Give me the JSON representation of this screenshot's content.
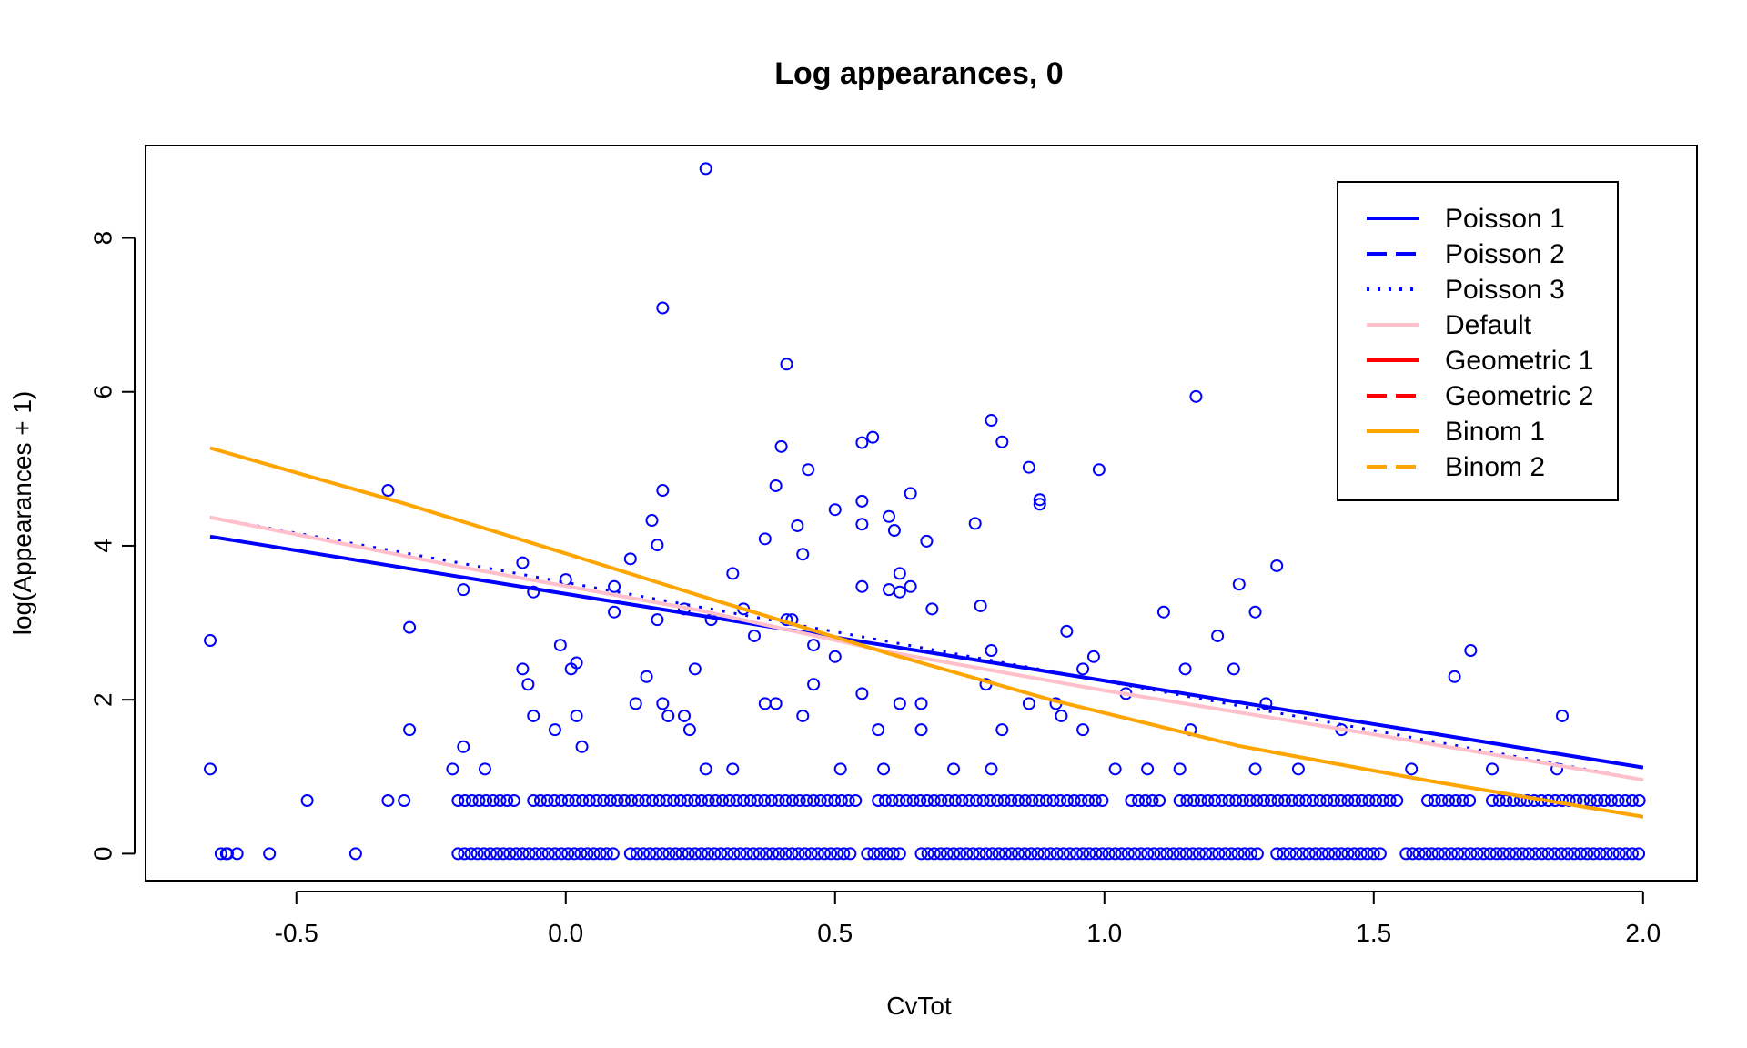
{
  "chart_data": {
    "type": "scatter",
    "title": "Log appearances,  0",
    "xlabel": "CvTot",
    "ylabel": "log(Appearances + 1)",
    "xlim": [
      -0.78,
      2.1
    ],
    "ylim": [
      -0.35,
      9.2
    ],
    "x_ticks": [
      "-0.5",
      "0.0",
      "0.5",
      "1.0",
      "1.5",
      "2.0"
    ],
    "x_tick_values": [
      -0.5,
      0.0,
      0.5,
      1.0,
      1.5,
      2.0
    ],
    "y_ticks": [
      "0",
      "2",
      "4",
      "6",
      "8"
    ],
    "y_tick_values": [
      0,
      2,
      4,
      6,
      8
    ],
    "legend_position": "top-right",
    "point_color": "#0000ff",
    "points": [
      [
        -0.66,
        2.77
      ],
      [
        -0.66,
        1.1
      ],
      [
        -0.33,
        4.72
      ],
      [
        -0.29,
        2.94
      ],
      [
        -0.29,
        1.61
      ],
      [
        -0.19,
        3.43
      ],
      [
        -0.19,
        1.39
      ],
      [
        -0.08,
        3.78
      ],
      [
        -0.08,
        2.4
      ],
      [
        -0.07,
        2.2
      ],
      [
        -0.06,
        3.4
      ],
      [
        -0.06,
        1.79
      ],
      [
        -0.02,
        1.61
      ],
      [
        -0.01,
        2.71
      ],
      [
        0.0,
        3.56
      ],
      [
        0.01,
        2.4
      ],
      [
        0.02,
        2.48
      ],
      [
        0.02,
        1.79
      ],
      [
        0.03,
        1.39
      ],
      [
        0.09,
        3.47
      ],
      [
        0.09,
        3.14
      ],
      [
        0.12,
        3.83
      ],
      [
        0.13,
        1.95
      ],
      [
        0.15,
        2.3
      ],
      [
        0.16,
        4.33
      ],
      [
        0.17,
        4.01
      ],
      [
        0.17,
        3.04
      ],
      [
        0.18,
        7.09
      ],
      [
        0.18,
        4.72
      ],
      [
        0.18,
        1.95
      ],
      [
        0.19,
        1.79
      ],
      [
        0.22,
        3.18
      ],
      [
        0.22,
        1.79
      ],
      [
        0.23,
        1.61
      ],
      [
        0.24,
        2.4
      ],
      [
        0.26,
        8.9
      ],
      [
        0.27,
        3.04
      ],
      [
        0.31,
        3.64
      ],
      [
        0.33,
        3.18
      ],
      [
        0.35,
        2.83
      ],
      [
        0.37,
        4.09
      ],
      [
        0.37,
        1.95
      ],
      [
        0.39,
        4.78
      ],
      [
        0.39,
        1.95
      ],
      [
        0.4,
        5.29
      ],
      [
        0.41,
        6.36
      ],
      [
        0.41,
        3.04
      ],
      [
        0.42,
        3.04
      ],
      [
        0.43,
        4.26
      ],
      [
        0.44,
        3.89
      ],
      [
        0.44,
        1.79
      ],
      [
        0.45,
        4.99
      ],
      [
        0.46,
        2.71
      ],
      [
        0.46,
        2.2
      ],
      [
        0.5,
        4.47
      ],
      [
        0.5,
        2.56
      ],
      [
        0.55,
        5.34
      ],
      [
        0.55,
        4.58
      ],
      [
        0.55,
        4.28
      ],
      [
        0.55,
        3.47
      ],
      [
        0.55,
        2.08
      ],
      [
        0.57,
        5.41
      ],
      [
        0.58,
        1.61
      ],
      [
        0.6,
        4.38
      ],
      [
        0.6,
        3.43
      ],
      [
        0.61,
        4.2
      ],
      [
        0.62,
        3.64
      ],
      [
        0.62,
        3.4
      ],
      [
        0.62,
        1.95
      ],
      [
        0.64,
        4.68
      ],
      [
        0.64,
        3.47
      ],
      [
        0.66,
        1.95
      ],
      [
        0.66,
        1.61
      ],
      [
        0.67,
        4.06
      ],
      [
        0.68,
        3.18
      ],
      [
        0.76,
        4.29
      ],
      [
        0.77,
        3.22
      ],
      [
        0.78,
        2.2
      ],
      [
        0.79,
        5.63
      ],
      [
        0.79,
        2.64
      ],
      [
        0.81,
        5.35
      ],
      [
        0.81,
        1.61
      ],
      [
        0.86,
        5.02
      ],
      [
        0.86,
        1.95
      ],
      [
        0.88,
        4.6
      ],
      [
        0.88,
        4.54
      ],
      [
        0.91,
        1.95
      ],
      [
        0.92,
        1.79
      ],
      [
        0.93,
        2.89
      ],
      [
        0.96,
        2.4
      ],
      [
        0.96,
        1.61
      ],
      [
        0.98,
        2.56
      ],
      [
        0.99,
        4.99
      ],
      [
        1.04,
        2.08
      ],
      [
        1.11,
        3.14
      ],
      [
        1.15,
        2.4
      ],
      [
        1.16,
        1.61
      ],
      [
        1.17,
        5.94
      ],
      [
        1.21,
        2.83
      ],
      [
        1.24,
        2.4
      ],
      [
        1.25,
        3.5
      ],
      [
        1.28,
        3.14
      ],
      [
        1.3,
        1.95
      ],
      [
        1.32,
        3.74
      ],
      [
        1.44,
        1.61
      ],
      [
        1.65,
        2.3
      ],
      [
        1.68,
        2.64
      ],
      [
        1.85,
        1.79
      ],
      [
        -0.48,
        0.69
      ],
      [
        -0.33,
        0.69
      ],
      [
        -0.3,
        0.69
      ],
      [
        -0.21,
        1.1
      ],
      [
        -0.15,
        1.1
      ],
      [
        0.26,
        1.1
      ],
      [
        0.31,
        1.1
      ],
      [
        0.51,
        1.1
      ],
      [
        0.59,
        1.1
      ],
      [
        0.72,
        1.1
      ],
      [
        0.79,
        1.1
      ],
      [
        1.02,
        1.1
      ],
      [
        1.08,
        1.1
      ],
      [
        1.14,
        1.1
      ],
      [
        1.28,
        1.1
      ],
      [
        1.36,
        1.1
      ],
      [
        1.57,
        1.1
      ],
      [
        1.72,
        1.1
      ],
      [
        1.84,
        1.1
      ]
    ],
    "rows_at_one_value": 0.69,
    "rows_at_one_x": [
      -0.2,
      0.37,
      0.55,
      0.73,
      1.07,
      1.15,
      1.27,
      1.35,
      1.43,
      1.52,
      1.7,
      1.95
    ],
    "rows_at_zero_x": [
      -0.64,
      -0.62,
      -0.56,
      -0.39,
      -0.18,
      0.0,
      0.45,
      0.6,
      0.83,
      1.0,
      1.44,
      1.8,
      2.0
    ],
    "series": [
      {
        "name": "Poisson 1",
        "color": "#0000ff",
        "dash": "solid",
        "width": 4,
        "x": [
          -0.66,
          2.0
        ],
        "y": [
          4.12,
          1.12
        ]
      },
      {
        "name": "Poisson 2",
        "color": "#0000ff",
        "dash": "dashed",
        "width": 3,
        "x": [
          -0.66,
          2.0
        ],
        "y": [
          4.12,
          1.12
        ]
      },
      {
        "name": "Poisson 3",
        "color": "#0000ff",
        "dash": "dotted",
        "width": 3,
        "x": [
          -0.66,
          2.0
        ],
        "y": [
          4.37,
          0.96
        ]
      },
      {
        "name": "Default",
        "color": "#ffc0cb",
        "dash": "solid",
        "width": 4,
        "x": [
          -0.66,
          -0.2,
          0.25,
          0.6,
          1.0,
          1.5,
          2.0
        ],
        "y": [
          4.37,
          3.73,
          3.16,
          2.62,
          2.12,
          1.55,
          0.96
        ]
      },
      {
        "name": "Geometric 1",
        "color": "#ff0000",
        "dash": "solid",
        "width": 3,
        "x": [
          -0.66,
          -0.3,
          0.0,
          0.25,
          0.6,
          0.9,
          1.25,
          1.6,
          2.0
        ],
        "y": [
          5.27,
          4.55,
          3.9,
          3.35,
          2.6,
          2.0,
          1.4,
          0.95,
          0.48
        ]
      },
      {
        "name": "Geometric 2",
        "color": "#ff0000",
        "dash": "dashed",
        "width": 3,
        "x": [
          -0.66,
          -0.3,
          0.0,
          0.25,
          0.6,
          0.9,
          1.25,
          1.6,
          2.0
        ],
        "y": [
          5.27,
          4.55,
          3.9,
          3.35,
          2.6,
          2.0,
          1.4,
          0.95,
          0.48
        ]
      },
      {
        "name": "Binom 1",
        "color": "#ffa500",
        "dash": "solid",
        "width": 4,
        "x": [
          -0.66,
          -0.3,
          0.0,
          0.25,
          0.6,
          0.9,
          1.25,
          1.6,
          2.0
        ],
        "y": [
          5.27,
          4.55,
          3.9,
          3.35,
          2.6,
          2.0,
          1.4,
          0.95,
          0.48
        ]
      },
      {
        "name": "Binom 2",
        "color": "#ffa500",
        "dash": "dashed",
        "width": 3,
        "x": [
          -0.66,
          -0.3,
          0.0,
          0.25,
          0.6,
          0.9,
          1.25,
          1.6,
          2.0
        ],
        "y": [
          5.27,
          4.55,
          3.9,
          3.35,
          2.6,
          2.0,
          1.4,
          0.95,
          0.48
        ]
      }
    ],
    "legend": [
      {
        "label": "Poisson 1",
        "color": "#0000ff",
        "dash": "solid"
      },
      {
        "label": "Poisson 2",
        "color": "#0000ff",
        "dash": "dashed"
      },
      {
        "label": "Poisson 3",
        "color": "#0000ff",
        "dash": "dotted"
      },
      {
        "label": "Default",
        "color": "#ffc0cb",
        "dash": "solid"
      },
      {
        "label": "Geometric 1",
        "color": "#ff0000",
        "dash": "solid"
      },
      {
        "label": "Geometric 2",
        "color": "#ff0000",
        "dash": "dashed"
      },
      {
        "label": "Binom 1",
        "color": "#ffa500",
        "dash": "solid"
      },
      {
        "label": "Binom 2",
        "color": "#ffa500",
        "dash": "dashed"
      }
    ]
  }
}
